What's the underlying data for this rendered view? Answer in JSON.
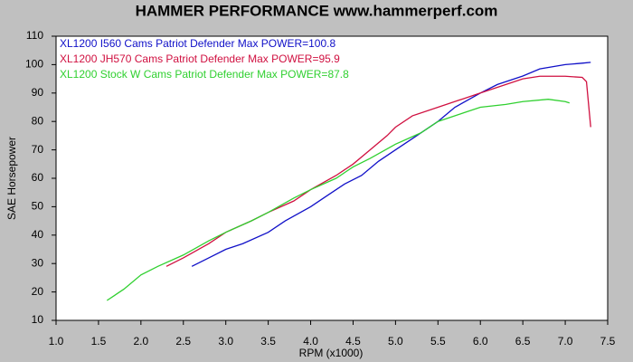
{
  "chart_data": {
    "type": "line",
    "title": "HAMMER PERFORMANCE www.hammerperf.com",
    "x_label": "RPM (x1000)",
    "y_label": "SAE Horsepower",
    "xlim": [
      1.0,
      7.5
    ],
    "xticks": [
      {
        "value": 1.0,
        "label": "1.0"
      },
      1.5,
      {
        "value": 2.0,
        "label": "2.0"
      },
      2.5,
      {
        "value": 3.0,
        "label": "3.0"
      },
      3.5,
      {
        "value": 4.0,
        "label": "4.0"
      },
      4.5,
      {
        "value": 5.0,
        "label": "5.0"
      },
      5.5,
      {
        "value": 6.0,
        "label": "6.0"
      },
      6.5,
      {
        "value": 7.0,
        "label": "7.0"
      },
      7.5
    ],
    "ylim": [
      10,
      110
    ],
    "yticks": [
      10,
      20,
      30,
      40,
      50,
      60,
      70,
      80,
      90,
      100,
      110
    ],
    "grid": false,
    "series": [
      {
        "name": "XL1200 I560 Cams Patriot Defender  Max POWER=100.8",
        "color": "#1010c8",
        "x": [
          2.6,
          2.8,
          3.0,
          3.2,
          3.5,
          3.7,
          4.0,
          4.2,
          4.4,
          4.6,
          4.8,
          5.0,
          5.2,
          5.5,
          5.7,
          6.0,
          6.2,
          6.5,
          6.7,
          7.0,
          7.2,
          7.3
        ],
        "values": [
          29,
          32,
          35,
          37,
          41,
          45,
          50,
          54,
          58,
          61,
          66,
          70,
          74,
          80,
          85,
          90,
          93,
          96,
          98.5,
          100,
          100.5,
          100.8
        ]
      },
      {
        "name": "XL1200 JH570 Cams Patriot Defender  Max POWER=95.9",
        "color": "#d01040",
        "x": [
          2.3,
          2.5,
          2.8,
          3.0,
          3.3,
          3.5,
          3.8,
          4.0,
          4.3,
          4.5,
          4.7,
          4.9,
          5.0,
          5.2,
          5.5,
          5.8,
          6.0,
          6.3,
          6.5,
          6.7,
          7.0,
          7.2,
          7.25,
          7.3
        ],
        "values": [
          29,
          32,
          37,
          41,
          45,
          48,
          52,
          56,
          61,
          65,
          70,
          75,
          78,
          82,
          85,
          88,
          90,
          93,
          95,
          95.9,
          95.9,
          95.5,
          94,
          78
        ]
      },
      {
        "name": "XL1200 Stock W Cams Patriot Defender  Max POWER=87.8",
        "color": "#30d030",
        "x": [
          1.6,
          1.8,
          2.0,
          2.2,
          2.5,
          2.8,
          3.0,
          3.3,
          3.5,
          3.8,
          4.0,
          4.3,
          4.5,
          4.7,
          5.0,
          5.3,
          5.5,
          5.8,
          6.0,
          6.3,
          6.5,
          6.8,
          7.0,
          7.05
        ],
        "values": [
          17,
          21,
          26,
          29,
          33,
          38,
          41,
          45,
          48,
          53,
          56,
          60,
          64,
          67,
          72,
          76,
          80,
          83,
          85,
          86,
          87,
          87.8,
          87,
          86.5
        ]
      }
    ]
  }
}
